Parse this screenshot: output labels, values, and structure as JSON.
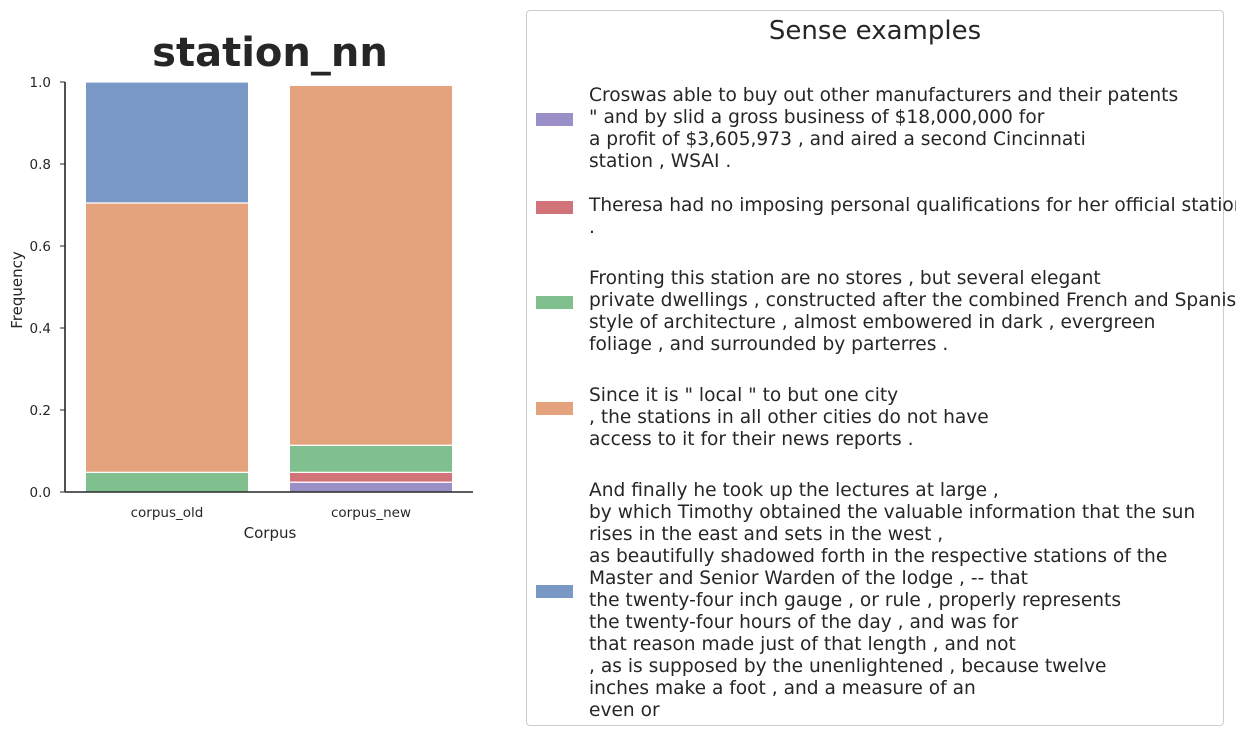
{
  "chart_data": {
    "type": "bar",
    "stacked": true,
    "title": "station_nn",
    "xlabel": "Corpus",
    "ylabel": "Frequency",
    "ylim": [
      0,
      1
    ],
    "yticks": [
      "0.0",
      "0.2",
      "0.4",
      "0.6",
      "0.8",
      "1.0"
    ],
    "categories": [
      "corpus_old",
      "corpus_new"
    ],
    "grid": false,
    "series": [
      {
        "color": "#9b8fc7",
        "values": [
          0.0,
          0.024
        ]
      },
      {
        "color": "#d2737a",
        "values": [
          0.0,
          0.024
        ]
      },
      {
        "color": "#80bf8e",
        "values": [
          0.048,
          0.066
        ]
      },
      {
        "color": "#e4a37d",
        "values": [
          0.657,
          0.878
        ]
      },
      {
        "color": "#7a98c5",
        "values": [
          0.295,
          0.003
        ]
      }
    ]
  },
  "legend": {
    "title": "Sense examples",
    "placement": "right",
    "entries": [
      {
        "color": "#9b8fc7",
        "text": "Croswas able to buy out other manufacturers and their patents\n\" and by slid a gross business of $18,000,000 for\na profit of $3,605,973 , and aired a second Cincinnati\nstation , WSAI ."
      },
      {
        "color": "#d2737a",
        "text": "Theresa had no imposing personal qualifications for her official station\n."
      },
      {
        "color": "#80bf8e",
        "text": "Fronting this station are no stores , but several elegant\nprivate dwellings , constructed after the combined French and Spanish\nstyle of architecture , almost embowered in dark , evergreen\nfoliage , and surrounded by parterres ."
      },
      {
        "color": "#e4a37d",
        "text": "Since it is \" local \" to but one city\n, the stations in all other cities do not have\naccess to it for their news reports ."
      },
      {
        "color": "#7a98c5",
        "text": "And finally he took up the lectures at large ,\nby which Timothy obtained the valuable information that the sun\nrises in the east and sets in the west ,\nas beautifully shadowed forth in the respective stations of the\nMaster and Senior Warden of the lodge , -- that\nthe twenty-four inch gauge , or rule , properly represents\nthe twenty-four hours of the day , and was for\nthat reason made just of that length , and not\n, as is supposed by the unenlightened , because twelve\ninches make a foot , and a measure of an\neven or"
      }
    ]
  }
}
